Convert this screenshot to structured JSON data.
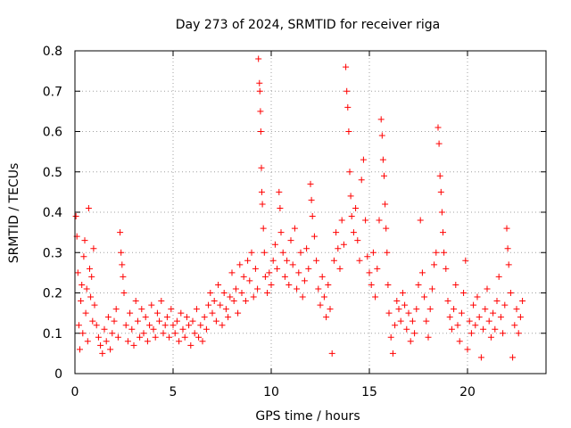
{
  "chart_data": {
    "type": "scatter",
    "title": "Day 273 of 2024, SRMTID for receiver riga",
    "xlabel": "GPS time / hours",
    "ylabel": "SRMTID / TECUs",
    "xlim": [
      0,
      24
    ],
    "ylim": [
      0,
      0.8
    ],
    "xticks": [
      0,
      5,
      10,
      15,
      20
    ],
    "yticks": [
      0,
      0.1,
      0.2,
      0.3,
      0.4,
      0.5,
      0.6,
      0.7,
      0.8
    ],
    "xtick_labels": [
      "0",
      "5",
      "10",
      "15",
      "20"
    ],
    "ytick_labels": [
      "0",
      "0.1",
      "0.2",
      "0.3",
      "0.4",
      "0.5",
      "0.6",
      "0.7",
      "0.8"
    ],
    "grid": true,
    "marker": "+",
    "color": "#ff0000",
    "series": [
      {
        "name": "SRMTID",
        "points": [
          [
            0.05,
            0.39
          ],
          [
            0.1,
            0.34
          ],
          [
            0.15,
            0.25
          ],
          [
            0.2,
            0.12
          ],
          [
            0.25,
            0.06
          ],
          [
            0.3,
            0.18
          ],
          [
            0.35,
            0.22
          ],
          [
            0.4,
            0.1
          ],
          [
            0.45,
            0.29
          ],
          [
            0.5,
            0.33
          ],
          [
            0.55,
            0.15
          ],
          [
            0.6,
            0.21
          ],
          [
            0.65,
            0.08
          ],
          [
            0.7,
            0.41
          ],
          [
            0.75,
            0.26
          ],
          [
            0.8,
            0.19
          ],
          [
            0.85,
            0.24
          ],
          [
            0.9,
            0.13
          ],
          [
            0.95,
            0.31
          ],
          [
            1.0,
            0.17
          ],
          [
            1.1,
            0.12
          ],
          [
            1.2,
            0.09
          ],
          [
            1.3,
            0.07
          ],
          [
            1.4,
            0.05
          ],
          [
            1.5,
            0.11
          ],
          [
            1.6,
            0.08
          ],
          [
            1.7,
            0.14
          ],
          [
            1.8,
            0.06
          ],
          [
            1.9,
            0.1
          ],
          [
            2.0,
            0.13
          ],
          [
            2.1,
            0.16
          ],
          [
            2.2,
            0.09
          ],
          [
            2.3,
            0.35
          ],
          [
            2.35,
            0.3
          ],
          [
            2.4,
            0.27
          ],
          [
            2.45,
            0.24
          ],
          [
            2.5,
            0.2
          ],
          [
            2.6,
            0.12
          ],
          [
            2.7,
            0.08
          ],
          [
            2.8,
            0.15
          ],
          [
            2.9,
            0.11
          ],
          [
            3.0,
            0.07
          ],
          [
            3.1,
            0.18
          ],
          [
            3.2,
            0.13
          ],
          [
            3.3,
            0.09
          ],
          [
            3.4,
            0.16
          ],
          [
            3.5,
            0.1
          ],
          [
            3.6,
            0.14
          ],
          [
            3.7,
            0.08
          ],
          [
            3.8,
            0.12
          ],
          [
            3.9,
            0.17
          ],
          [
            4.0,
            0.11
          ],
          [
            4.1,
            0.09
          ],
          [
            4.2,
            0.15
          ],
          [
            4.3,
            0.13
          ],
          [
            4.4,
            0.18
          ],
          [
            4.5,
            0.1
          ],
          [
            4.6,
            0.12
          ],
          [
            4.7,
            0.14
          ],
          [
            4.8,
            0.09
          ],
          [
            4.9,
            0.16
          ],
          [
            5.0,
            0.12
          ],
          [
            5.1,
            0.1
          ],
          [
            5.2,
            0.13
          ],
          [
            5.3,
            0.08
          ],
          [
            5.4,
            0.15
          ],
          [
            5.5,
            0.11
          ],
          [
            5.6,
            0.09
          ],
          [
            5.7,
            0.14
          ],
          [
            5.8,
            0.12
          ],
          [
            5.9,
            0.07
          ],
          [
            6.0,
            0.13
          ],
          [
            6.1,
            0.1
          ],
          [
            6.2,
            0.16
          ],
          [
            6.3,
            0.09
          ],
          [
            6.4,
            0.12
          ],
          [
            6.5,
            0.08
          ],
          [
            6.6,
            0.14
          ],
          [
            6.7,
            0.11
          ],
          [
            6.8,
            0.17
          ],
          [
            6.9,
            0.2
          ],
          [
            7.0,
            0.15
          ],
          [
            7.1,
            0.18
          ],
          [
            7.2,
            0.13
          ],
          [
            7.3,
            0.22
          ],
          [
            7.4,
            0.17
          ],
          [
            7.5,
            0.12
          ],
          [
            7.6,
            0.2
          ],
          [
            7.7,
            0.16
          ],
          [
            7.8,
            0.14
          ],
          [
            7.9,
            0.19
          ],
          [
            8.0,
            0.25
          ],
          [
            8.1,
            0.18
          ],
          [
            8.2,
            0.21
          ],
          [
            8.3,
            0.15
          ],
          [
            8.4,
            0.27
          ],
          [
            8.5,
            0.2
          ],
          [
            8.6,
            0.24
          ],
          [
            8.7,
            0.18
          ],
          [
            8.8,
            0.28
          ],
          [
            8.9,
            0.23
          ],
          [
            9.0,
            0.3
          ],
          [
            9.1,
            0.19
          ],
          [
            9.2,
            0.26
          ],
          [
            9.3,
            0.21
          ],
          [
            9.35,
            0.78
          ],
          [
            9.4,
            0.72
          ],
          [
            9.42,
            0.7
          ],
          [
            9.45,
            0.65
          ],
          [
            9.47,
            0.6
          ],
          [
            9.5,
            0.51
          ],
          [
            9.52,
            0.45
          ],
          [
            9.55,
            0.42
          ],
          [
            9.6,
            0.36
          ],
          [
            9.65,
            0.3
          ],
          [
            9.7,
            0.24
          ],
          [
            9.8,
            0.2
          ],
          [
            9.9,
            0.25
          ],
          [
            10.0,
            0.22
          ],
          [
            10.1,
            0.28
          ],
          [
            10.2,
            0.32
          ],
          [
            10.3,
            0.26
          ],
          [
            10.4,
            0.45
          ],
          [
            10.45,
            0.41
          ],
          [
            10.5,
            0.35
          ],
          [
            10.6,
            0.3
          ],
          [
            10.7,
            0.24
          ],
          [
            10.8,
            0.28
          ],
          [
            10.9,
            0.22
          ],
          [
            11.0,
            0.33
          ],
          [
            11.1,
            0.27
          ],
          [
            11.2,
            0.36
          ],
          [
            11.3,
            0.21
          ],
          [
            11.4,
            0.25
          ],
          [
            11.5,
            0.3
          ],
          [
            11.6,
            0.19
          ],
          [
            11.7,
            0.23
          ],
          [
            11.8,
            0.31
          ],
          [
            11.9,
            0.26
          ],
          [
            12.0,
            0.47
          ],
          [
            12.05,
            0.43
          ],
          [
            12.1,
            0.39
          ],
          [
            12.2,
            0.34
          ],
          [
            12.3,
            0.28
          ],
          [
            12.4,
            0.21
          ],
          [
            12.5,
            0.17
          ],
          [
            12.6,
            0.24
          ],
          [
            12.7,
            0.19
          ],
          [
            12.8,
            0.14
          ],
          [
            12.9,
            0.22
          ],
          [
            13.0,
            0.16
          ],
          [
            13.1,
            0.05
          ],
          [
            13.2,
            0.28
          ],
          [
            13.3,
            0.35
          ],
          [
            13.4,
            0.31
          ],
          [
            13.5,
            0.26
          ],
          [
            13.6,
            0.38
          ],
          [
            13.7,
            0.32
          ],
          [
            13.8,
            0.76
          ],
          [
            13.85,
            0.7
          ],
          [
            13.9,
            0.66
          ],
          [
            13.95,
            0.6
          ],
          [
            14.0,
            0.5
          ],
          [
            14.05,
            0.44
          ],
          [
            14.1,
            0.39
          ],
          [
            14.2,
            0.35
          ],
          [
            14.3,
            0.41
          ],
          [
            14.4,
            0.33
          ],
          [
            14.5,
            0.28
          ],
          [
            14.6,
            0.48
          ],
          [
            14.7,
            0.53
          ],
          [
            14.8,
            0.38
          ],
          [
            14.9,
            0.29
          ],
          [
            15.0,
            0.25
          ],
          [
            15.1,
            0.22
          ],
          [
            15.2,
            0.3
          ],
          [
            15.3,
            0.19
          ],
          [
            15.4,
            0.26
          ],
          [
            15.5,
            0.38
          ],
          [
            15.6,
            0.63
          ],
          [
            15.65,
            0.59
          ],
          [
            15.7,
            0.53
          ],
          [
            15.75,
            0.49
          ],
          [
            15.8,
            0.42
          ],
          [
            15.85,
            0.36
          ],
          [
            15.9,
            0.3
          ],
          [
            15.95,
            0.22
          ],
          [
            16.0,
            0.15
          ],
          [
            16.1,
            0.09
          ],
          [
            16.2,
            0.05
          ],
          [
            16.3,
            0.12
          ],
          [
            16.4,
            0.18
          ],
          [
            16.5,
            0.16
          ],
          [
            16.6,
            0.13
          ],
          [
            16.7,
            0.2
          ],
          [
            16.8,
            0.17
          ],
          [
            16.9,
            0.11
          ],
          [
            17.0,
            0.15
          ],
          [
            17.1,
            0.08
          ],
          [
            17.2,
            0.13
          ],
          [
            17.3,
            0.1
          ],
          [
            17.4,
            0.16
          ],
          [
            17.5,
            0.22
          ],
          [
            17.6,
            0.38
          ],
          [
            17.7,
            0.25
          ],
          [
            17.8,
            0.19
          ],
          [
            17.9,
            0.13
          ],
          [
            18.0,
            0.09
          ],
          [
            18.1,
            0.16
          ],
          [
            18.2,
            0.21
          ],
          [
            18.3,
            0.27
          ],
          [
            18.4,
            0.3
          ],
          [
            18.5,
            0.61
          ],
          [
            18.55,
            0.57
          ],
          [
            18.6,
            0.49
          ],
          [
            18.65,
            0.45
          ],
          [
            18.7,
            0.4
          ],
          [
            18.75,
            0.35
          ],
          [
            18.8,
            0.3
          ],
          [
            18.9,
            0.26
          ],
          [
            19.0,
            0.18
          ],
          [
            19.1,
            0.14
          ],
          [
            19.2,
            0.11
          ],
          [
            19.3,
            0.16
          ],
          [
            19.4,
            0.22
          ],
          [
            19.5,
            0.12
          ],
          [
            19.6,
            0.08
          ],
          [
            19.7,
            0.15
          ],
          [
            19.8,
            0.2
          ],
          [
            19.9,
            0.28
          ],
          [
            20.0,
            0.06
          ],
          [
            20.1,
            0.13
          ],
          [
            20.2,
            0.1
          ],
          [
            20.3,
            0.17
          ],
          [
            20.4,
            0.12
          ],
          [
            20.5,
            0.19
          ],
          [
            20.6,
            0.14
          ],
          [
            20.7,
            0.04
          ],
          [
            20.8,
            0.11
          ],
          [
            20.9,
            0.16
          ],
          [
            21.0,
            0.21
          ],
          [
            21.1,
            0.13
          ],
          [
            21.2,
            0.09
          ],
          [
            21.3,
            0.15
          ],
          [
            21.4,
            0.11
          ],
          [
            21.5,
            0.18
          ],
          [
            21.6,
            0.24
          ],
          [
            21.7,
            0.14
          ],
          [
            21.8,
            0.1
          ],
          [
            21.9,
            0.17
          ],
          [
            22.0,
            0.36
          ],
          [
            22.05,
            0.31
          ],
          [
            22.1,
            0.27
          ],
          [
            22.2,
            0.2
          ],
          [
            22.3,
            0.04
          ],
          [
            22.4,
            0.12
          ],
          [
            22.5,
            0.16
          ],
          [
            22.6,
            0.1
          ],
          [
            22.7,
            0.14
          ],
          [
            22.8,
            0.18
          ]
        ]
      }
    ]
  }
}
